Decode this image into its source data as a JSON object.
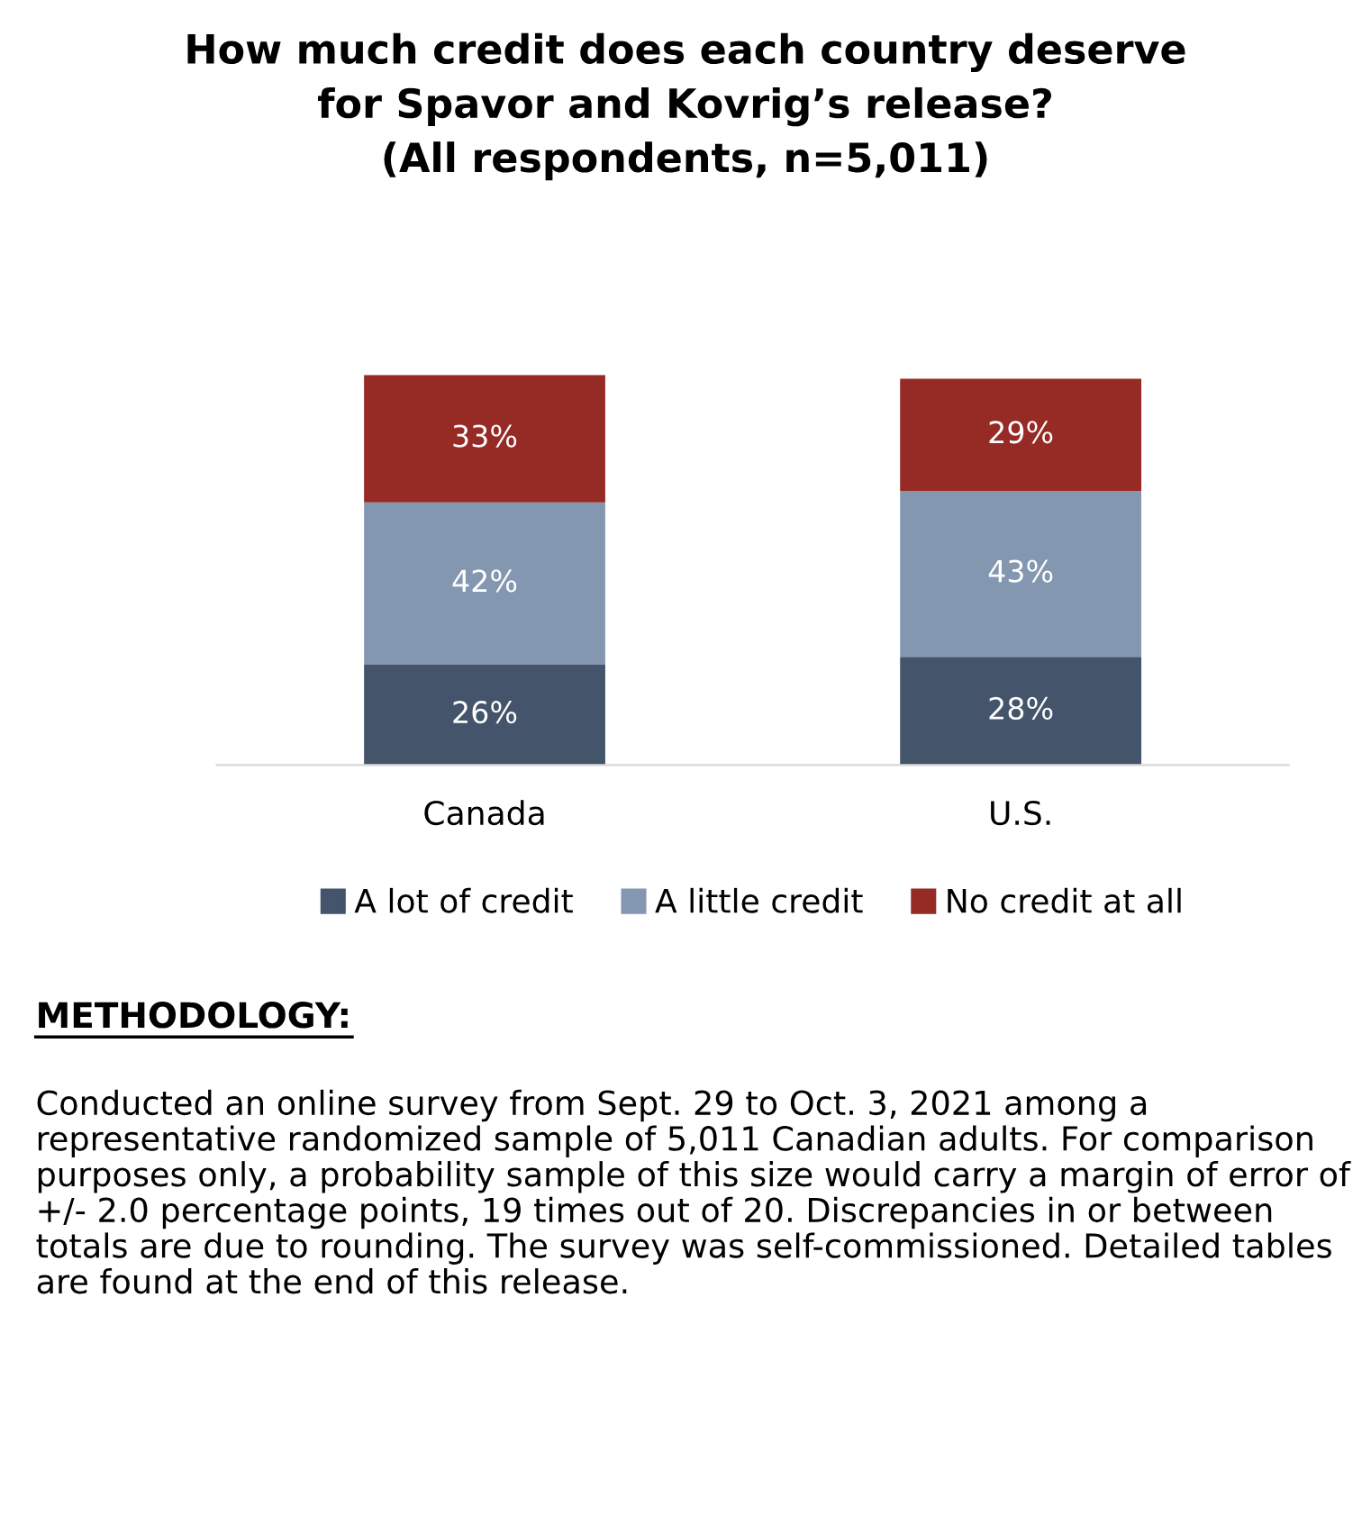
{
  "chart_data": {
    "type": "bar",
    "stacked": true,
    "title": "How much credit does each country deserve\nfor Spavor and Kovrig’s release?\n(All respondents, n=5,011)",
    "categories": [
      "Canada",
      "U.S."
    ],
    "series": [
      {
        "name": "A lot of credit",
        "color": "#44546a",
        "values": [
          26,
          28
        ],
        "value_labels": [
          "26%",
          "28%"
        ]
      },
      {
        "name": "A little credit",
        "color": "#8497b0",
        "values": [
          42,
          43
        ],
        "value_labels": [
          "42%",
          "43%"
        ]
      },
      {
        "name": "No credit at all",
        "color": "#962a25",
        "values": [
          33,
          29
        ],
        "value_labels": [
          "33%",
          "29%"
        ]
      }
    ],
    "legend": "bottom",
    "grid": false,
    "tick_labels": "x",
    "annotations": [
      "METHODOLOGY:",
      "Conducted an online survey from Sept. 29 to Oct. 3, 2021 among a representative randomized sample of 5,011 Canadian adults. For comparison purposes only, a probability sample of this size would carry a margin of error of +/- 2.0 percentage points, 19 times out of 20. Discrepancies in or between totals are due to rounding. The survey was self-commissioned. Detailed tables are found at the end of this release."
    ]
  }
}
